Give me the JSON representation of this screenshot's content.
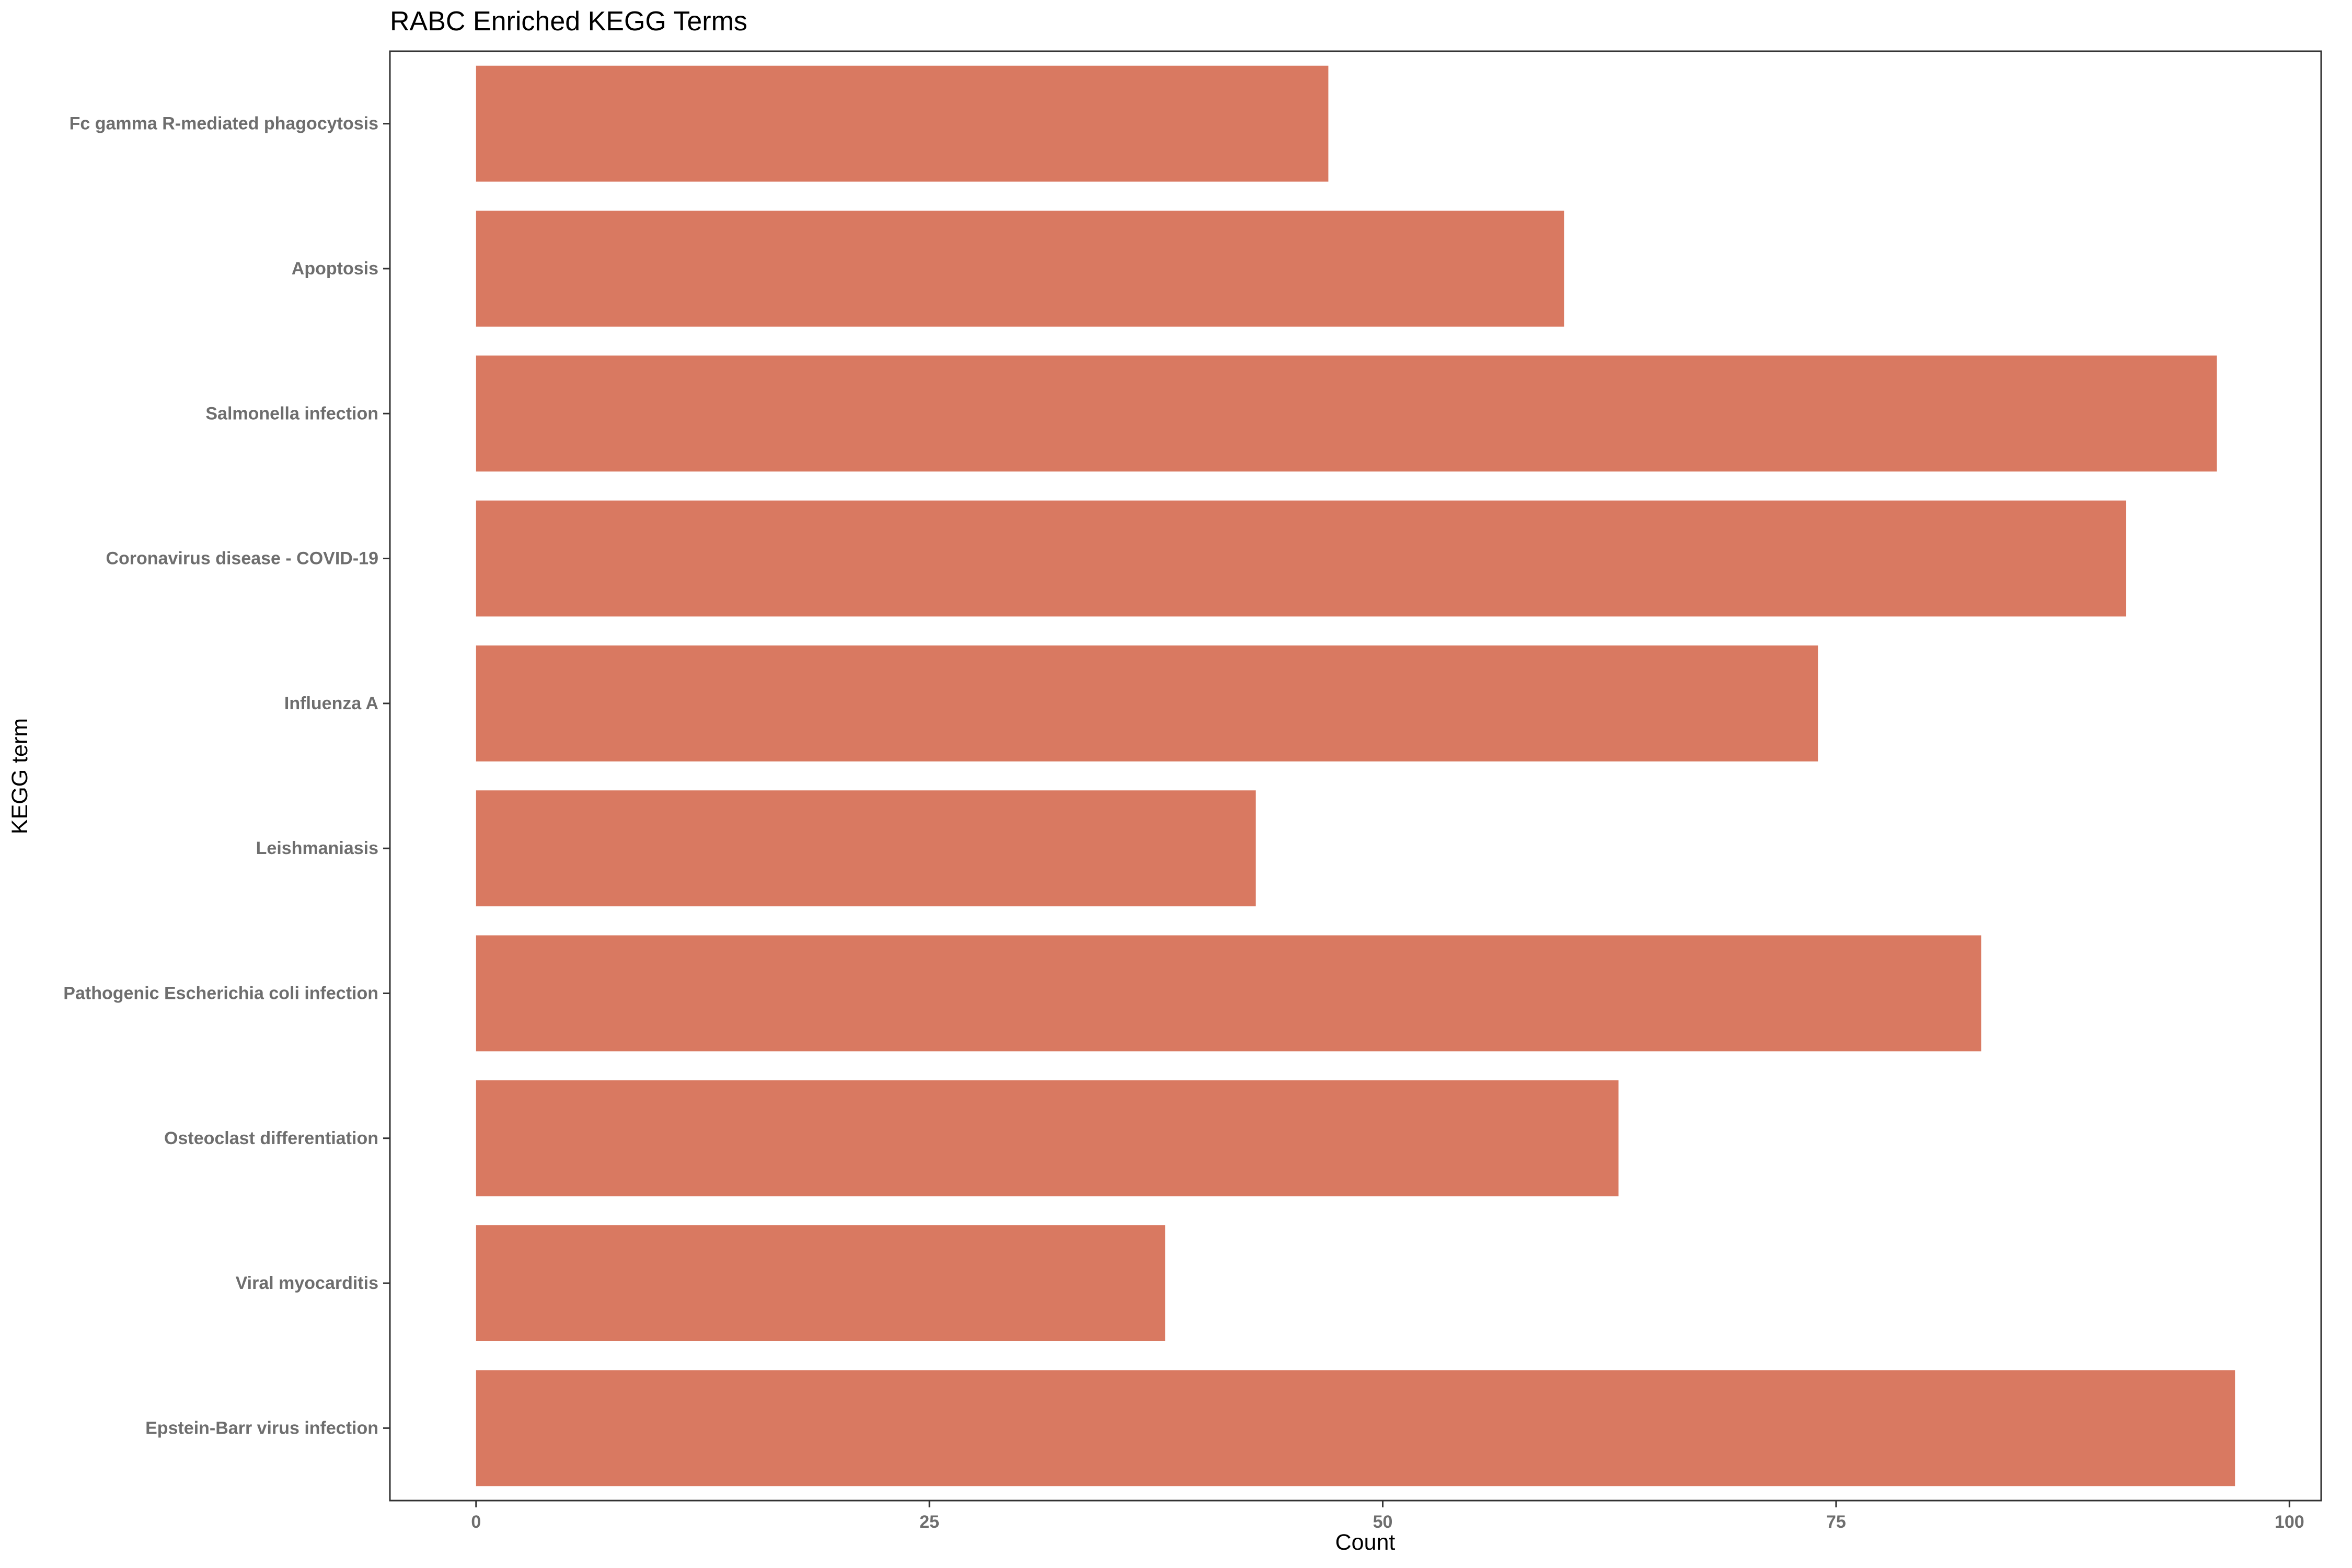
{
  "chart_data": {
    "type": "bar",
    "orientation": "horizontal",
    "title": "RABC Enriched KEGG Terms",
    "xlabel": "Count",
    "ylabel": "KEGG term",
    "categories": [
      "Fc gamma R-mediated phagocytosis",
      "Apoptosis",
      "Salmonella infection",
      "Coronavirus disease - COVID-19",
      "Influenza A",
      "Leishmaniasis",
      "Pathogenic Escherichia coli infection",
      "Osteoclast differentiation",
      "Viral myocarditis",
      "Epstein-Barr virus infection"
    ],
    "values": [
      47,
      60,
      96,
      91,
      74,
      43,
      83,
      63,
      38,
      97
    ],
    "xlim": [
      -4.75,
      101.75
    ],
    "xticks": [
      0,
      25,
      50,
      75,
      100
    ],
    "grid": false,
    "legend": "none",
    "colors": {
      "bar": "#D97961",
      "panel_border": "#333333",
      "tick_label": "#6e6e6e",
      "text": "#000000"
    }
  }
}
